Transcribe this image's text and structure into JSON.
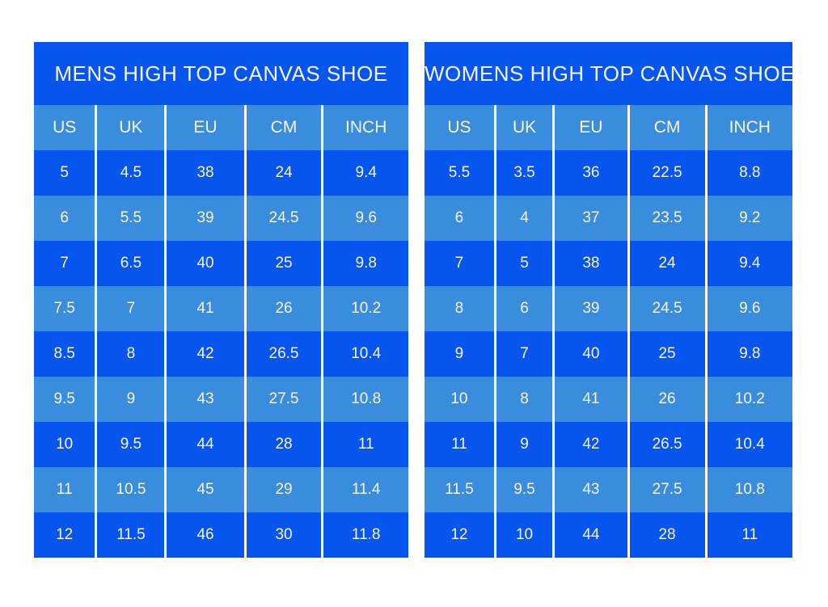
{
  "colors": {
    "dark_blue": "#0655ee",
    "light_blue": "#3a8ddc",
    "text": "#f5f6f8",
    "separator": "#ffffff",
    "page_background": "#ffffff"
  },
  "chart_data": [
    {
      "type": "table",
      "title": "MENS HIGH TOP CANVAS SHOE",
      "columns": [
        "US",
        "UK",
        "EU",
        "CM",
        "INCH"
      ],
      "rows": [
        [
          "5",
          "4.5",
          "38",
          "24",
          "9.4"
        ],
        [
          "6",
          "5.5",
          "39",
          "24.5",
          "9.6"
        ],
        [
          "7",
          "6.5",
          "40",
          "25",
          "9.8"
        ],
        [
          "7.5",
          "7",
          "41",
          "26",
          "10.2"
        ],
        [
          "8.5",
          "8",
          "42",
          "26.5",
          "10.4"
        ],
        [
          "9.5",
          "9",
          "43",
          "27.5",
          "10.8"
        ],
        [
          "10",
          "9.5",
          "44",
          "28",
          "11"
        ],
        [
          "11",
          "10.5",
          "45",
          "29",
          "11.4"
        ],
        [
          "12",
          "11.5",
          "46",
          "30",
          "11.8"
        ]
      ],
      "layout": {
        "row_striping": "alternating dark/light starting dark",
        "header_background": "light_blue",
        "title_background": "dark_blue",
        "gridlines": "vertical white separators only"
      }
    },
    {
      "type": "table",
      "title": "WOMENS HIGH TOP CANVAS SHOE",
      "columns": [
        "US",
        "UK",
        "EU",
        "CM",
        "INCH"
      ],
      "rows": [
        [
          "5.5",
          "3.5",
          "36",
          "22.5",
          "8.8"
        ],
        [
          "6",
          "4",
          "37",
          "23.5",
          "9.2"
        ],
        [
          "7",
          "5",
          "38",
          "24",
          "9.4"
        ],
        [
          "8",
          "6",
          "39",
          "24.5",
          "9.6"
        ],
        [
          "9",
          "7",
          "40",
          "25",
          "9.8"
        ],
        [
          "10",
          "8",
          "41",
          "26",
          "10.2"
        ],
        [
          "11",
          "9",
          "42",
          "26.5",
          "10.4"
        ],
        [
          "11.5",
          "9.5",
          "43",
          "27.5",
          "10.8"
        ],
        [
          "12",
          "10",
          "44",
          "28",
          "11"
        ]
      ],
      "layout": {
        "row_striping": "alternating dark/light starting dark",
        "header_background": "light_blue",
        "title_background": "dark_blue",
        "gridlines": "vertical white separators only"
      }
    }
  ]
}
